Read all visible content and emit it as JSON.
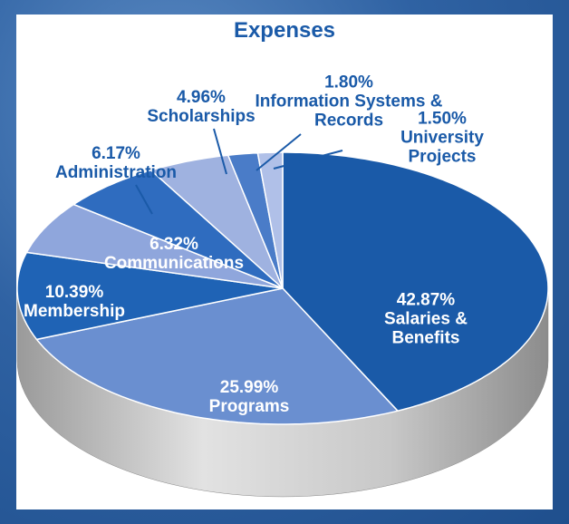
{
  "chart_data": {
    "type": "pie",
    "title": "Expenses",
    "categories": [
      "Salaries & Benefits",
      "Programs",
      "Membership",
      "Communications",
      "Administration",
      "Scholarships",
      "Information Systems & Records",
      "University Projects"
    ],
    "values": [
      42.87,
      25.99,
      10.39,
      6.32,
      6.17,
      4.96,
      1.8,
      1.5
    ],
    "value_labels": [
      "42.87%",
      "25.99%",
      "10.39%",
      "6.32%",
      "6.17%",
      "4.96%",
      "1.80%",
      "1.50%"
    ],
    "colors": [
      "#1a5aa8",
      "#6a8fd0",
      "#1f63b5",
      "#8fa6dc",
      "#2f6cbf",
      "#9fb2e0",
      "#4a7cc8",
      "#b0c0e8"
    ]
  }
}
